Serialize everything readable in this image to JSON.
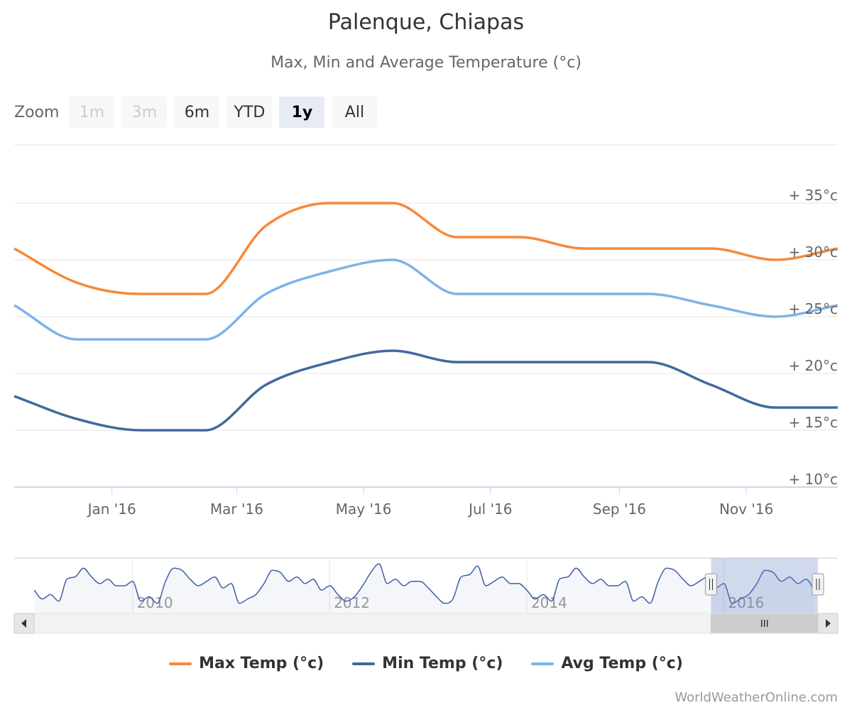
{
  "title": "Palenque, Chiapas",
  "subtitle": "Max, Min and Average Temperature (°c)",
  "zoom": {
    "label": "Zoom",
    "buttons": [
      {
        "label": "1m",
        "state": "disabled"
      },
      {
        "label": "3m",
        "state": "disabled"
      },
      {
        "label": "6m",
        "state": "normal"
      },
      {
        "label": "YTD",
        "state": "normal"
      },
      {
        "label": "1y",
        "state": "selected"
      },
      {
        "label": "All",
        "state": "normal"
      }
    ]
  },
  "credit": "WorldWeatherOnline.com",
  "colors": {
    "max": "#f7883a",
    "min": "#43689f",
    "avg": "#7cb4e8",
    "navigator_series": "#3f5fa6"
  },
  "chart_data": {
    "type": "line",
    "title": "Palenque, Chiapas",
    "subtitle": "Max, Min and Average Temperature (°c)",
    "x_dates": [
      "2015-11-15",
      "2015-12-15",
      "2016-01-15",
      "2016-02-15",
      "2016-03-15",
      "2016-04-15",
      "2016-05-15",
      "2016-06-15",
      "2016-07-15",
      "2016-08-15",
      "2016-09-15",
      "2016-10-15",
      "2016-11-15",
      "2016-12-15"
    ],
    "x_tick_labels": [
      {
        "date": "2016-01-01",
        "label": "Jan '16"
      },
      {
        "date": "2016-03-01",
        "label": "Mar '16"
      },
      {
        "date": "2016-05-01",
        "label": "May '16"
      },
      {
        "date": "2016-07-01",
        "label": "Jul '16"
      },
      {
        "date": "2016-09-01",
        "label": "Sep '16"
      },
      {
        "date": "2016-11-01",
        "label": "Nov '16"
      }
    ],
    "x_range": [
      "2015-11-15",
      "2016-12-15"
    ],
    "y_ticks": [
      10,
      15,
      20,
      25,
      30,
      35
    ],
    "y_tick_labels": [
      "+ 10°c",
      "+ 15°c",
      "+ 20°c",
      "+ 25°c",
      "+ 30°c",
      "+ 35°c"
    ],
    "ylim": [
      10,
      40
    ],
    "grid": true,
    "legend_position": "bottom-center",
    "series": [
      {
        "name": "Max Temp (°c)",
        "key": "max",
        "values": [
          31,
          28,
          27,
          27,
          33,
          35,
          35,
          32,
          32,
          31,
          31,
          31,
          30,
          31
        ]
      },
      {
        "name": "Min Temp (°c)",
        "key": "min",
        "values": [
          18,
          16,
          15,
          15,
          19,
          21,
          22,
          21,
          21,
          21,
          21,
          19,
          17,
          17
        ]
      },
      {
        "name": "Avg Temp (°c)",
        "key": "avg",
        "values": [
          26,
          23,
          23,
          23,
          27,
          29,
          30,
          27,
          27,
          27,
          27,
          26,
          25,
          26
        ]
      }
    ],
    "navigator": {
      "year_labels": [
        "2010",
        "2012",
        "2014",
        "2016"
      ],
      "x_range": [
        "2009-01-01",
        "2016-12-15"
      ],
      "selected_range": [
        "2015-11-15",
        "2016-12-15"
      ]
    }
  }
}
